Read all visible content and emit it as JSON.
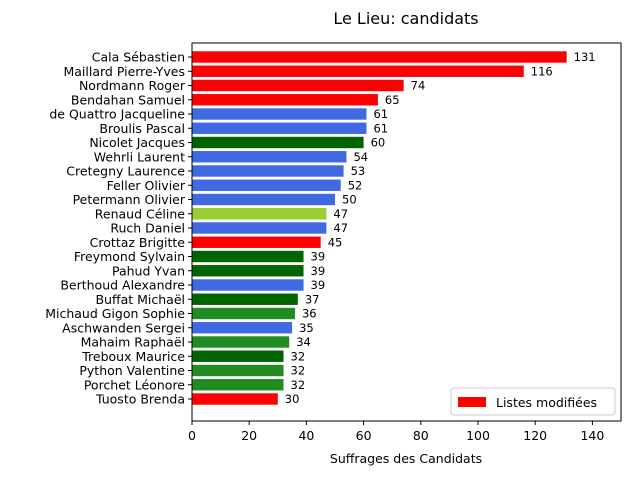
{
  "chart_data": {
    "type": "bar",
    "orientation": "horizontal",
    "title": "Le Lieu: candidats",
    "xlabel": "Suffrages des Candidats",
    "ylabel": "",
    "xlim": [
      0,
      150
    ],
    "xticks": [
      0,
      20,
      40,
      60,
      80,
      100,
      120,
      140
    ],
    "grid": false,
    "legend": {
      "placement": "lower-right",
      "entries": [
        {
          "label": "Listes modifiées",
          "color": "#ff0000"
        }
      ]
    },
    "categories": [
      "Cala Sébastien",
      "Maillard Pierre-Yves",
      "Nordmann Roger",
      "Bendahan Samuel",
      "de Quattro Jacqueline",
      "Broulis Pascal",
      "Nicolet Jacques",
      "Wehrli Laurent",
      "Cretegny Laurence",
      "Feller Olivier",
      "Petermann Olivier",
      "Renaud Céline",
      "Ruch Daniel",
      "Crottaz Brigitte",
      "Freymond Sylvain",
      "Pahud Yvan",
      "Berthoud Alexandre",
      "Buffat Michaël",
      "Michaud Gigon Sophie",
      "Aschwanden Sergei",
      "Mahaim Raphaël",
      "Treboux Maurice",
      "Python Valentine",
      "Porchet Léonore",
      "Tuosto Brenda"
    ],
    "values": [
      131,
      116,
      74,
      65,
      61,
      61,
      60,
      54,
      53,
      52,
      50,
      47,
      47,
      45,
      39,
      39,
      39,
      37,
      36,
      35,
      34,
      32,
      32,
      32,
      30
    ],
    "colors": [
      "#ff0000",
      "#ff0000",
      "#ff0000",
      "#ff0000",
      "#4169e1",
      "#4169e1",
      "#006400",
      "#4169e1",
      "#4169e1",
      "#4169e1",
      "#4169e1",
      "#9acd32",
      "#4169e1",
      "#ff0000",
      "#006400",
      "#006400",
      "#4169e1",
      "#006400",
      "#228b22",
      "#4169e1",
      "#228b22",
      "#006400",
      "#228b22",
      "#228b22",
      "#ff0000"
    ]
  }
}
